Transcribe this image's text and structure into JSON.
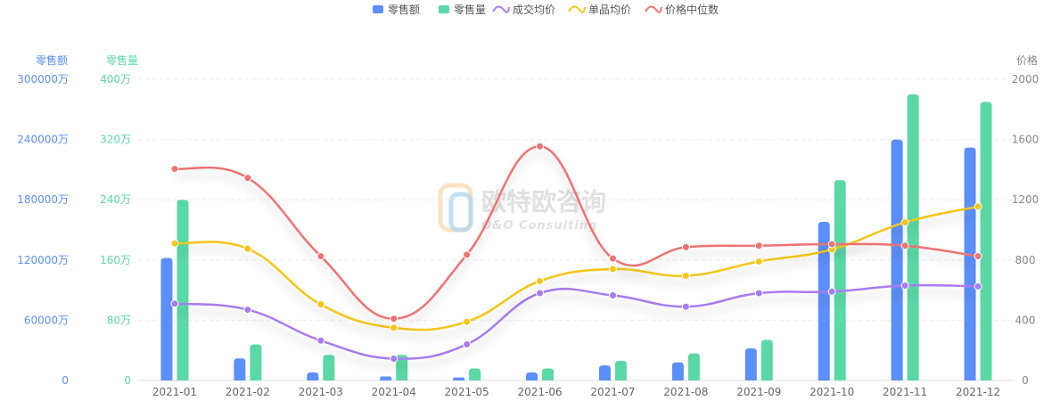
{
  "chart_data": {
    "type": "bar-line",
    "categories": [
      "2021-01",
      "2021-02",
      "2021-03",
      "2021-04",
      "2021-05",
      "2021-06",
      "2021-07",
      "2021-08",
      "2021-09",
      "2021-10",
      "2021-11",
      "2021-12"
    ],
    "legend_position": "top-center",
    "grid": true,
    "axes": {
      "left1": {
        "label": "零售额",
        "ticks": [
          "0",
          "60000万",
          "120000万",
          "180000万",
          "240000万",
          "300000万"
        ],
        "range": [
          0,
          300000
        ],
        "color": "#5b8ff9"
      },
      "left2": {
        "label": "零售量",
        "ticks": [
          "0",
          "80万",
          "160万",
          "240万",
          "320万",
          "400万"
        ],
        "range": [
          0,
          400
        ],
        "color": "#5ad8a6"
      },
      "right": {
        "label": "价格",
        "ticks": [
          "0",
          "400",
          "800",
          "1200",
          "1600",
          "2000"
        ],
        "range": [
          0,
          2000
        ],
        "color": "#888888"
      }
    },
    "series": [
      {
        "name": "零售额",
        "kind": "bar",
        "axis": "left1",
        "color": "#5b8ff9",
        "values": [
          122000,
          22000,
          8000,
          4000,
          3000,
          8000,
          15000,
          18000,
          32000,
          158000,
          240000,
          232000
        ]
      },
      {
        "name": "零售量",
        "kind": "bar",
        "axis": "left2",
        "color": "#5ad8a6",
        "values": [
          240,
          48,
          34,
          34,
          16,
          16,
          26,
          36,
          54,
          266,
          380,
          370
        ]
      },
      {
        "name": "成交均价",
        "kind": "line",
        "axis": "right",
        "color": "#a77cf0",
        "values": [
          510,
          470,
          265,
          145,
          240,
          580,
          565,
          490,
          580,
          590,
          630,
          625
        ]
      },
      {
        "name": "单品均价",
        "kind": "line",
        "axis": "right",
        "color": "#f5c518",
        "values": [
          910,
          875,
          505,
          350,
          390,
          660,
          740,
          695,
          790,
          870,
          1050,
          1155
        ]
      },
      {
        "name": "价格中位数",
        "kind": "line",
        "axis": "right",
        "color": "#f07272",
        "values": [
          1405,
          1345,
          825,
          410,
          835,
          1555,
          810,
          885,
          895,
          905,
          895,
          825
        ]
      }
    ],
    "watermark": {
      "cn": "欧特欧咨询",
      "en": "O&O Consulting"
    }
  }
}
